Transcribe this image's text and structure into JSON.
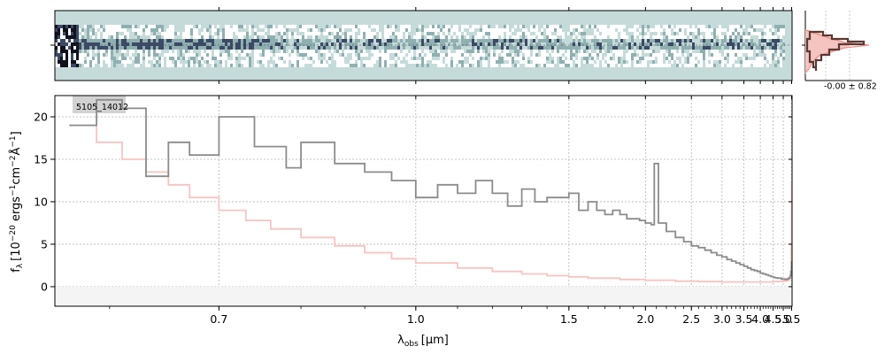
{
  "chart_data": [
    {
      "type": "heatmap",
      "role": "2d-spectrum",
      "colormap": [
        "#ffffff",
        "#c7dcdb",
        "#8fb0b1",
        "#3b4a66",
        "#11111f"
      ],
      "background": "#c5dbda"
    },
    {
      "type": "line",
      "role": "1d-spectrum",
      "label": "5105_14012",
      "xlabel": "λ",
      "xlabel_sub": "obs",
      "xlabel_unit": "[μm]",
      "ylabel": "f",
      "ylabel_sub": "λ",
      "ylabel_unit_open": "[10",
      "ylabel_exp1": "−20",
      "ylabel_mid": " ergs",
      "ylabel_exp2": "−1",
      "ylabel_mid2": "cm",
      "ylabel_exp3": "−2",
      "ylabel_mid3": "Å",
      "ylabel_exp4": "−1",
      "ylabel_close": "]",
      "xlim": [
        0.56,
        5.53
      ],
      "ylim": [
        -2.3,
        22.5
      ],
      "x_scale": "reciprocal",
      "xticks": [
        0.7,
        1.0,
        1.5,
        2.0,
        2.5,
        3.0,
        3.5,
        4.0,
        4.5,
        5.0,
        5.5
      ],
      "xtick_labels": [
        "0.7",
        "1.0",
        "1.5",
        "2.0",
        "2.5",
        "3.0",
        "3.5",
        "4.0",
        "4.5",
        "5.0",
        "5.5"
      ],
      "yticks": [
        0,
        5,
        10,
        15,
        20
      ],
      "ytick_labels": [
        "0",
        "5",
        "10",
        "15",
        "20"
      ],
      "grid": true,
      "series": [
        {
          "role": "flux",
          "color": "#8c8c8c",
          "points": [
            [
              0.57,
              19
            ],
            [
              0.59,
              22
            ],
            [
              0.61,
              21
            ],
            [
              0.63,
              13
            ],
            [
              0.65,
              17
            ],
            [
              0.67,
              15.5
            ],
            [
              0.7,
              20
            ],
            [
              0.74,
              16.5
            ],
            [
              0.78,
              14
            ],
            [
              0.8,
              17
            ],
            [
              0.85,
              14.5
            ],
            [
              0.9,
              13.5
            ],
            [
              0.95,
              12.5
            ],
            [
              1.0,
              10.5
            ],
            [
              1.05,
              12
            ],
            [
              1.1,
              11
            ],
            [
              1.15,
              12.5
            ],
            [
              1.2,
              11
            ],
            [
              1.25,
              9.5
            ],
            [
              1.3,
              11.5
            ],
            [
              1.35,
              10
            ],
            [
              1.4,
              10.5
            ],
            [
              1.45,
              10.5
            ],
            [
              1.5,
              11
            ],
            [
              1.55,
              9
            ],
            [
              1.6,
              10
            ],
            [
              1.65,
              9
            ],
            [
              1.7,
              8.5
            ],
            [
              1.75,
              9
            ],
            [
              1.8,
              8.5
            ],
            [
              1.85,
              8
            ],
            [
              1.9,
              8
            ],
            [
              1.95,
              7.8
            ],
            [
              2.0,
              7.5
            ],
            [
              2.05,
              7.3
            ],
            [
              2.08,
              14.5
            ],
            [
              2.12,
              7.5
            ],
            [
              2.2,
              6.5
            ],
            [
              2.3,
              5.8
            ],
            [
              2.4,
              5.3
            ],
            [
              2.5,
              4.8
            ],
            [
              2.6,
              4.6
            ],
            [
              2.7,
              4.3
            ],
            [
              2.8,
              4
            ],
            [
              2.9,
              3.7
            ],
            [
              3.0,
              3.5
            ],
            [
              3.1,
              3.2
            ],
            [
              3.2,
              3
            ],
            [
              3.3,
              2.8
            ],
            [
              3.4,
              2.6
            ],
            [
              3.5,
              2.4
            ],
            [
              3.6,
              2.2
            ],
            [
              3.7,
              2
            ],
            [
              3.8,
              1.9
            ],
            [
              3.9,
              1.8
            ],
            [
              4.0,
              1.6
            ],
            [
              4.1,
              1.5
            ],
            [
              4.2,
              1.4
            ],
            [
              4.3,
              1.3
            ],
            [
              4.4,
              1.2
            ],
            [
              4.5,
              1.1
            ],
            [
              4.6,
              1.05
            ],
            [
              4.7,
              1
            ],
            [
              4.8,
              1
            ],
            [
              4.9,
              0.9
            ],
            [
              5.0,
              0.9
            ],
            [
              5.1,
              0.85
            ],
            [
              5.2,
              0.9
            ],
            [
              5.3,
              1
            ],
            [
              5.4,
              1.3
            ],
            [
              5.45,
              1.8
            ],
            [
              5.5,
              3
            ]
          ]
        },
        {
          "role": "uncertainty",
          "color": "#f7c4c2",
          "points": [
            [
              0.57,
              19
            ],
            [
              0.59,
              17
            ],
            [
              0.61,
              15
            ],
            [
              0.63,
              13.5
            ],
            [
              0.65,
              12
            ],
            [
              0.67,
              10.5
            ],
            [
              0.7,
              9
            ],
            [
              0.73,
              7.8
            ],
            [
              0.76,
              6.8
            ],
            [
              0.8,
              5.8
            ],
            [
              0.85,
              4.8
            ],
            [
              0.9,
              4
            ],
            [
              0.95,
              3.3
            ],
            [
              1.0,
              2.8
            ],
            [
              1.1,
              2.2
            ],
            [
              1.2,
              1.8
            ],
            [
              1.3,
              1.5
            ],
            [
              1.4,
              1.3
            ],
            [
              1.5,
              1.15
            ],
            [
              1.6,
              1
            ],
            [
              1.8,
              0.85
            ],
            [
              2.0,
              0.75
            ],
            [
              2.3,
              0.65
            ],
            [
              2.6,
              0.6
            ],
            [
              3.0,
              0.55
            ],
            [
              3.5,
              0.55
            ],
            [
              4.0,
              0.55
            ],
            [
              4.5,
              0.6
            ],
            [
              5.0,
              0.65
            ],
            [
              5.2,
              0.75
            ],
            [
              5.35,
              1
            ],
            [
              5.45,
              1.8
            ],
            [
              5.48,
              5
            ],
            [
              5.5,
              12.5
            ]
          ]
        }
      ]
    },
    {
      "type": "bar",
      "role": "residual-histogram",
      "annotation": "-0.00 ± 0.82"
    }
  ]
}
